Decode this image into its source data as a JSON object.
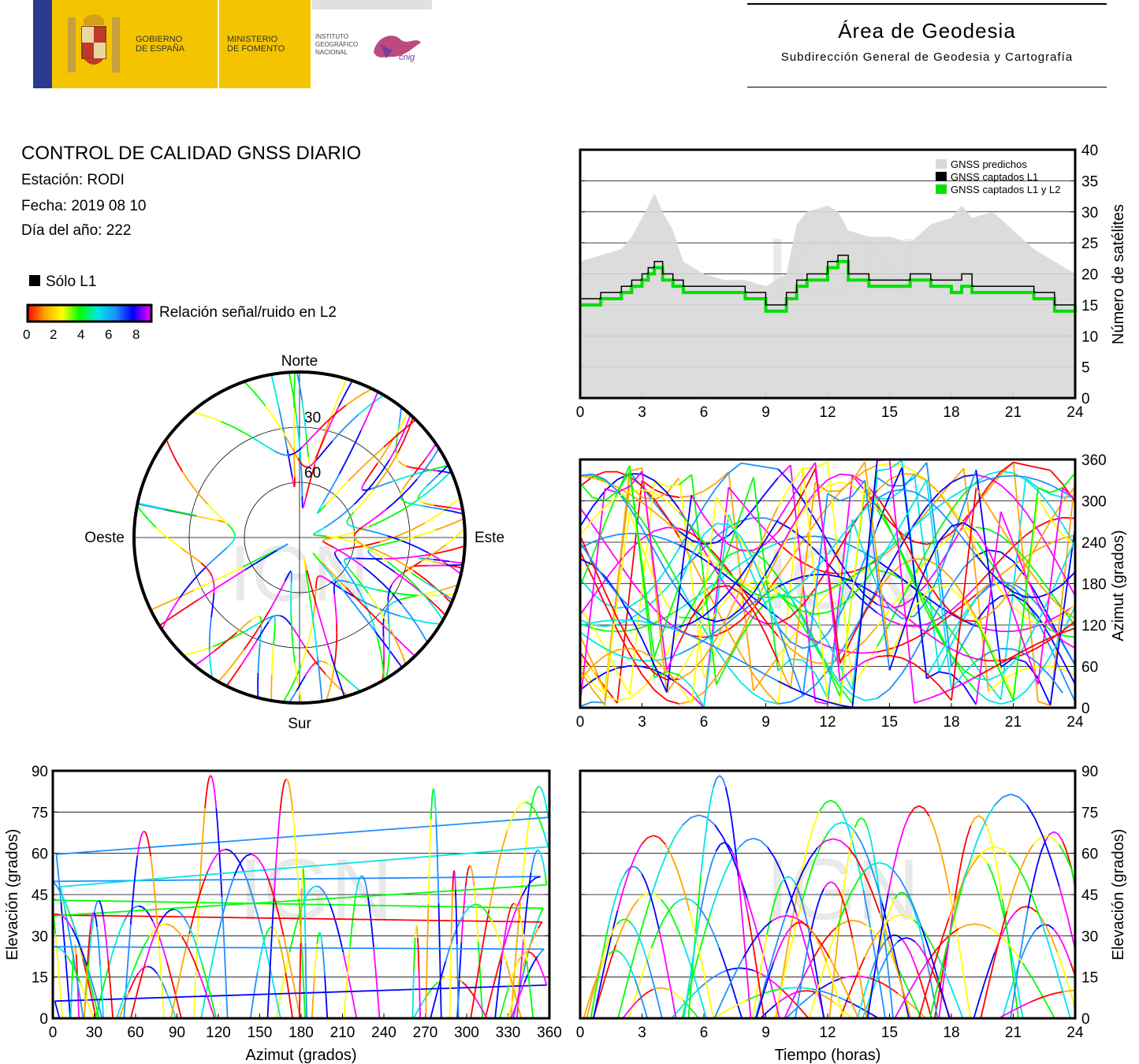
{
  "header": {
    "gov_line1": "GOBIERNO",
    "gov_line2": "DE ESPAÑA",
    "min_line1": "MINISTERIO",
    "min_line2": "DE FOMENTO",
    "ign_line1": "INSTITUTO",
    "ign_line2": "GEOGRÁFICO",
    "ign_line3": "NACIONAL",
    "cnig": "cnig",
    "area_title": "Área de Geodesia",
    "area_subtitle": "Subdirección General de Geodesia y Cartografía"
  },
  "report": {
    "title": "CONTROL DE CALIDAD GNSS DIARIO",
    "station": "Estación: RODI",
    "date": "Fecha: 2019 08 10",
    "doy": "Día del año: 222"
  },
  "legend": {
    "l1_only": "Sólo L1",
    "snr_label": "Relación señal/ruido en L2",
    "snr_ticks": [
      "0",
      "2",
      "4",
      "6",
      "8"
    ]
  },
  "watermark": "IGN",
  "colors": {
    "predicted": "#d8d8d8",
    "l1": "#000000",
    "l1l2": "#00e000",
    "snr_scale": [
      "#ff0000",
      "#ffa500",
      "#ffff00",
      "#00ff00",
      "#00e5e5",
      "#1e90ff",
      "#0000ff",
      "#ff00ff"
    ]
  },
  "chart_data": [
    {
      "id": "satellites",
      "type": "area",
      "xlim": [
        0,
        24
      ],
      "ylim": [
        0,
        40
      ],
      "xticks": [
        "0",
        "3",
        "6",
        "9",
        "12",
        "15",
        "18",
        "21",
        "24"
      ],
      "yticks": [
        "0",
        "5",
        "10",
        "15",
        "20",
        "25",
        "30",
        "35",
        "40"
      ],
      "ylabel": "Número de satélites",
      "grid": true,
      "legend_position": "top-right",
      "series": [
        {
          "name": "GNSS predichos",
          "x": [
            0,
            1,
            2,
            2.5,
            3,
            3.3,
            3.6,
            4,
            4.5,
            5,
            6,
            7,
            8,
            9,
            10,
            10.5,
            11,
            12,
            12.5,
            13,
            14,
            15,
            16,
            17,
            18,
            18.5,
            19,
            20,
            21,
            22,
            23,
            24
          ],
          "values": [
            22,
            23,
            24,
            26,
            29,
            31,
            33,
            30,
            27,
            22,
            20,
            19,
            19,
            18,
            20,
            28,
            30,
            31,
            30,
            27,
            26,
            26,
            25,
            28,
            29,
            31,
            29,
            30,
            27,
            24,
            22,
            20
          ]
        },
        {
          "name": "GNSS captados L1",
          "x": [
            0,
            1,
            2,
            2.5,
            3,
            3.3,
            3.6,
            4,
            4.5,
            5,
            6,
            7,
            8,
            9,
            10,
            10.5,
            11,
            12,
            12.5,
            13,
            14,
            15,
            16,
            17,
            18,
            18.5,
            19,
            20,
            21,
            22,
            23,
            24
          ],
          "values": [
            16,
            17,
            18,
            19,
            20,
            21,
            22,
            20,
            19,
            18,
            18,
            18,
            17,
            15,
            17,
            19,
            20,
            22,
            23,
            20,
            19,
            19,
            20,
            19,
            19,
            20,
            18,
            18,
            18,
            17,
            15,
            16
          ]
        },
        {
          "name": "GNSS captados L1 y L2",
          "x": [
            0,
            1,
            2,
            2.5,
            3,
            3.3,
            3.6,
            4,
            4.5,
            5,
            6,
            7,
            8,
            9,
            10,
            10.5,
            11,
            12,
            12.5,
            13,
            14,
            15,
            16,
            17,
            18,
            18.5,
            19,
            20,
            21,
            22,
            23,
            24
          ],
          "values": [
            15,
            16,
            17,
            18,
            19,
            20,
            21,
            19,
            18,
            17,
            17,
            17,
            16,
            14,
            16,
            18,
            19,
            21,
            22,
            19,
            18,
            18,
            19,
            18,
            17,
            18,
            17,
            17,
            17,
            16,
            14,
            15
          ]
        }
      ]
    },
    {
      "id": "azimuth_time",
      "type": "scatter",
      "xlim": [
        0,
        24
      ],
      "ylim": [
        0,
        360
      ],
      "xticks": [
        "0",
        "3",
        "6",
        "9",
        "12",
        "15",
        "18",
        "21",
        "24"
      ],
      "yticks": [
        "0",
        "60",
        "120",
        "180",
        "240",
        "300",
        "360"
      ],
      "ylabel": "Azimut (grados)",
      "grid": true
    },
    {
      "id": "skyplot",
      "type": "scatter",
      "directions": {
        "north": "Norte",
        "south": "Sur",
        "west": "Oeste",
        "east": "Este"
      },
      "rings": [
        "30",
        "60"
      ]
    },
    {
      "id": "elevation_azimuth",
      "type": "scatter",
      "xlim": [
        0,
        360
      ],
      "ylim": [
        0,
        90
      ],
      "xticks": [
        "0",
        "30",
        "60",
        "90",
        "120",
        "150",
        "180",
        "210",
        "240",
        "270",
        "300",
        "330",
        "360"
      ],
      "yticks": [
        "0",
        "15",
        "30",
        "45",
        "60",
        "75",
        "90"
      ],
      "xlabel": "Azimut (grados)",
      "ylabel": "Elevación (grados)",
      "grid": true
    },
    {
      "id": "elevation_time",
      "type": "scatter",
      "xlim": [
        0,
        24
      ],
      "ylim": [
        0,
        90
      ],
      "xticks": [
        "0",
        "3",
        "6",
        "9",
        "12",
        "15",
        "18",
        "21",
        "24"
      ],
      "yticks": [
        "0",
        "15",
        "30",
        "45",
        "60",
        "75",
        "90"
      ],
      "xlabel": "Tiempo (horas)",
      "ylabel": "Elevación (grados)",
      "grid": true
    }
  ]
}
